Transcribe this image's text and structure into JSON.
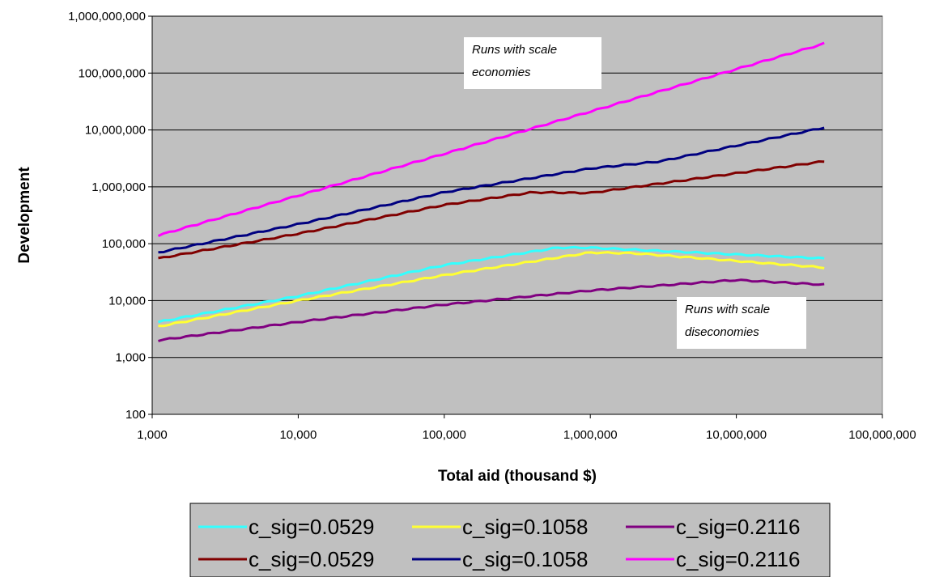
{
  "chart_data": {
    "type": "line",
    "title": "",
    "xlabel": "Total aid (thousand $)",
    "ylabel": "Development",
    "xscale": "log",
    "yscale": "log",
    "xlim": [
      1000,
      100000000
    ],
    "ylim": [
      100,
      1000000000
    ],
    "x_tick_labels": [
      "1,000",
      "10,000",
      "100,000",
      "1,000,000",
      "10,000,000",
      "100,000,000"
    ],
    "y_tick_labels": [
      "100",
      "1,000",
      "10,000",
      "100,000",
      "1,000,000",
      "10,000,000",
      "100,000,000",
      "1,000,000,000"
    ],
    "grid": "horizontal",
    "plot_background": "#c0c0c0",
    "legend_position": "bottom",
    "annotations": [
      {
        "line1": "Runs with scale",
        "line2": "economies",
        "x": 400000,
        "y": 100000000
      },
      {
        "line1": "Runs with scale",
        "line2": "diseconomies",
        "x": 30000000,
        "y": 5000
      }
    ],
    "series": [
      {
        "name": "c_sig=0.0529",
        "color": "#33ffff",
        "points": [
          [
            1100,
            4200
          ],
          [
            10000,
            12000
          ],
          [
            100000,
            42000
          ],
          [
            600000,
            85000
          ],
          [
            1000000,
            85000
          ],
          [
            40000000,
            55000
          ]
        ]
      },
      {
        "name": "c_sig=0.1058",
        "color": "#ffff33",
        "points": [
          [
            1100,
            3500
          ],
          [
            10000,
            10000
          ],
          [
            100000,
            28000
          ],
          [
            1000000,
            70000
          ],
          [
            2000000,
            68000
          ],
          [
            40000000,
            38000
          ]
        ]
      },
      {
        "name": "c_sig=0.2116",
        "color": "#800080",
        "points": [
          [
            1100,
            2000
          ],
          [
            10000,
            4200
          ],
          [
            100000,
            8500
          ],
          [
            1000000,
            15000
          ],
          [
            10000000,
            23000
          ],
          [
            40000000,
            19000
          ]
        ]
      },
      {
        "name": "c_sig=0.0529",
        "color": "#800000",
        "points": [
          [
            1100,
            55000
          ],
          [
            10000,
            150000
          ],
          [
            100000,
            480000
          ],
          [
            400000,
            800000
          ],
          [
            1000000,
            780000
          ],
          [
            40000000,
            2800000
          ]
        ]
      },
      {
        "name": "c_sig=0.1058",
        "color": "#000080",
        "points": [
          [
            1100,
            70000
          ],
          [
            10000,
            220000
          ],
          [
            100000,
            800000
          ],
          [
            1000000,
            2100000
          ],
          [
            3000000,
            2800000
          ],
          [
            40000000,
            11000000
          ]
        ]
      },
      {
        "name": "c_sig=0.2116",
        "color": "#ff00ff",
        "points": [
          [
            1100,
            140000
          ],
          [
            10000,
            700000
          ],
          [
            100000,
            3800000
          ],
          [
            1000000,
            21000000
          ],
          [
            40000000,
            330000000
          ]
        ]
      }
    ]
  }
}
